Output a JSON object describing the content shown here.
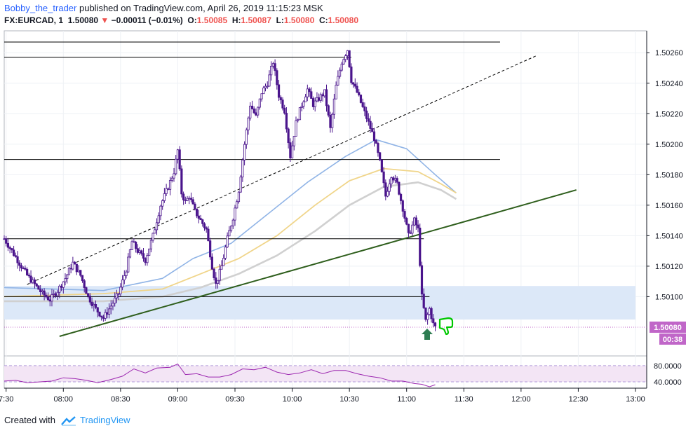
{
  "header": {
    "author": "Bobby_the_trader",
    "published_text": "published on TradingView.com, April 26, 2019 11:15:23 MSK",
    "symbol": "FX:EURCAD, 1",
    "last_price": "1.50080",
    "change": "−0.00011 (−0.01%)",
    "o_label": "O:",
    "o_value": "1.50085",
    "h_label": "H:",
    "h_value": "1.50087",
    "l_label": "L:",
    "l_value": "1.50080",
    "c_label": "C:",
    "c_value": "1.50080"
  },
  "footer": {
    "created_with": "Created with",
    "brand": "TradingView"
  },
  "colors": {
    "candle": "#4a148c",
    "trendline": "#2e5e1c",
    "dashed_channel": "#000000",
    "ma_fast": "#90b4e6",
    "ma_mid": "#f0d58a",
    "ma_slow": "#d0d0d0",
    "zone_fill": "#dce8f8",
    "rsi_line": "#9c27b0",
    "rsi_fill": "#f3e5f5",
    "price_tag": "#c066c8",
    "arrow_up": "#2e7d52",
    "thumbs_down": "#00c800"
  },
  "icons": [
    "arrow-up-icon",
    "thumbs-down-icon",
    "tradingview-logo-icon"
  ],
  "chart_data": {
    "type": "candlestick",
    "symbol": "FX:EURCAD",
    "interval": "1",
    "price_axis": {
      "ticks": [
        1.5026,
        1.5024,
        1.5022,
        1.502,
        1.5018,
        1.5016,
        1.5014,
        1.5012,
        1.501
      ],
      "tick_labels": [
        "1.50260",
        "1.50240",
        "1.50220",
        "1.50200",
        "1.50180",
        "1.50160",
        "1.50140",
        "1.50120",
        "1.50100"
      ],
      "last_price_label": "1.50080",
      "countdown_label": "00:38",
      "range": [
        1.50074,
        1.50267
      ]
    },
    "time_axis": {
      "ticks": [
        "07:30",
        "08:00",
        "08:30",
        "09:00",
        "09:30",
        "10:00",
        "10:30",
        "11:00",
        "11:30",
        "12:00",
        "12:30",
        "13:00"
      ],
      "tick_labels": [
        "7:30",
        "08:00",
        "08:30",
        "09:00",
        "09:30",
        "10:00",
        "10:30",
        "11:00",
        "11:30",
        "12:00",
        "12:30",
        "13:00"
      ],
      "range": [
        "07:29",
        "13:00"
      ]
    },
    "close_path": [
      [
        "07:29",
        1.50138
      ],
      [
        "07:33",
        1.5013
      ],
      [
        "07:37",
        1.50122
      ],
      [
        "07:41",
        1.50114
      ],
      [
        "07:45",
        1.50108
      ],
      [
        "07:49",
        1.50102
      ],
      [
        "07:53",
        1.50098
      ],
      [
        "07:57",
        1.50104
      ],
      [
        "08:01",
        1.50112
      ],
      [
        "08:05",
        1.50122
      ],
      [
        "08:09",
        1.50114
      ],
      [
        "08:13",
        1.501
      ],
      [
        "08:17",
        1.50092
      ],
      [
        "08:21",
        1.50086
      ],
      [
        "08:25",
        1.50094
      ],
      [
        "08:29",
        1.50102
      ],
      [
        "08:33",
        1.50118
      ],
      [
        "08:36",
        1.50136
      ],
      [
        "08:39",
        1.5013
      ],
      [
        "08:43",
        1.50124
      ],
      [
        "08:47",
        1.5014
      ],
      [
        "08:51",
        1.5016
      ],
      [
        "08:55",
        1.50172
      ],
      [
        "08:58",
        1.50182
      ],
      [
        "09:00",
        1.50196
      ],
      [
        "09:02",
        1.50168
      ],
      [
        "09:04",
        1.50162
      ],
      [
        "09:06",
        1.50166
      ],
      [
        "09:09",
        1.50156
      ],
      [
        "09:12",
        1.5015
      ],
      [
        "09:15",
        1.50144
      ],
      [
        "09:18",
        1.5012
      ],
      [
        "09:20",
        1.50108
      ],
      [
        "09:23",
        1.5012
      ],
      [
        "09:26",
        1.50138
      ],
      [
        "09:29",
        1.50152
      ],
      [
        "09:32",
        1.5017
      ],
      [
        "09:35",
        1.502
      ],
      [
        "09:38",
        1.50226
      ],
      [
        "09:41",
        1.50218
      ],
      [
        "09:44",
        1.50234
      ],
      [
        "09:47",
        1.5024
      ],
      [
        "09:50",
        1.50254
      ],
      [
        "09:53",
        1.50232
      ],
      [
        "09:56",
        1.50222
      ],
      [
        "09:59",
        1.50192
      ],
      [
        "10:02",
        1.50214
      ],
      [
        "10:05",
        1.50226
      ],
      [
        "10:08",
        1.50236
      ],
      [
        "10:11",
        1.50226
      ],
      [
        "10:14",
        1.5023
      ],
      [
        "10:17",
        1.50234
      ],
      [
        "10:20",
        1.5021
      ],
      [
        "10:23",
        1.50238
      ],
      [
        "10:26",
        1.50254
      ],
      [
        "10:29",
        1.50262
      ],
      [
        "10:31",
        1.50242
      ],
      [
        "10:34",
        1.50234
      ],
      [
        "10:37",
        1.50224
      ],
      [
        "10:40",
        1.50214
      ],
      [
        "10:43",
        1.50204
      ],
      [
        "10:46",
        1.50188
      ],
      [
        "10:49",
        1.50166
      ],
      [
        "10:52",
        1.5018
      ],
      [
        "10:55",
        1.50174
      ],
      [
        "10:58",
        1.50158
      ],
      [
        "11:01",
        1.5014
      ],
      [
        "11:04",
        1.5015
      ],
      [
        "11:06",
        1.50144
      ],
      [
        "11:08",
        1.501
      ],
      [
        "11:10",
        1.50084
      ],
      [
        "11:12",
        1.50092
      ],
      [
        "11:14",
        1.50082
      ],
      [
        "11:15",
        1.5008
      ]
    ],
    "levels": [
      {
        "price": 1.50267,
        "from": "07:29",
        "to": "11:49",
        "style": "solid"
      },
      {
        "price": 1.50257,
        "from": "07:29",
        "to": "10:31",
        "style": "solid"
      },
      {
        "price": 1.5019,
        "from": "07:29",
        "to": "11:49",
        "style": "solid"
      },
      {
        "price": 1.50138,
        "from": "07:29",
        "to": "11:09",
        "style": "solid"
      },
      {
        "price": 1.501,
        "from": "07:29",
        "to": "11:12",
        "style": "solid"
      }
    ],
    "zone": {
      "from": "07:29",
      "to": "13:00",
      "top": 1.50107,
      "bottom": 1.50085
    },
    "trendline": [
      [
        "07:58",
        1.50074
      ],
      [
        "12:29",
        1.5017
      ]
    ],
    "channel_line": [
      [
        "07:41",
        1.50108
      ],
      [
        "12:08",
        1.50258
      ]
    ],
    "moving_averages": [
      {
        "style": "fast",
        "points": [
          [
            "07:29",
            1.50106
          ],
          [
            "08:21",
            1.50104
          ],
          [
            "08:52",
            1.50112
          ],
          [
            "09:08",
            1.50125
          ],
          [
            "09:28",
            1.50135
          ],
          [
            "09:45",
            1.50152
          ],
          [
            "10:08",
            1.50175
          ],
          [
            "10:28",
            1.50192
          ],
          [
            "10:44",
            1.50203
          ],
          [
            "11:00",
            1.50197
          ],
          [
            "11:15",
            1.5018
          ],
          [
            "11:26",
            1.50168
          ]
        ]
      },
      {
        "style": "mid",
        "points": [
          [
            "07:29",
            1.501
          ],
          [
            "08:21",
            1.50102
          ],
          [
            "08:52",
            1.50105
          ],
          [
            "09:12",
            1.50115
          ],
          [
            "09:32",
            1.50125
          ],
          [
            "09:52",
            1.5014
          ],
          [
            "10:12",
            1.5016
          ],
          [
            "10:30",
            1.50176
          ],
          [
            "10:48",
            1.50184
          ],
          [
            "11:06",
            1.50182
          ],
          [
            "11:18",
            1.50174
          ],
          [
            "11:26",
            1.50168
          ]
        ]
      },
      {
        "style": "slow",
        "points": [
          [
            "07:29",
            1.50097
          ],
          [
            "08:21",
            1.50097
          ],
          [
            "08:52",
            1.501
          ],
          [
            "09:12",
            1.50106
          ],
          [
            "09:32",
            1.50115
          ],
          [
            "09:52",
            1.50127
          ],
          [
            "10:12",
            1.50143
          ],
          [
            "10:30",
            1.5016
          ],
          [
            "10:48",
            1.50172
          ],
          [
            "11:06",
            1.50175
          ],
          [
            "11:18",
            1.5017
          ],
          [
            "11:26",
            1.50164
          ]
        ]
      }
    ],
    "rsi": {
      "tick_labels": [
        "80.0000",
        "40.0000"
      ],
      "ticks": [
        80,
        40
      ],
      "range": [
        28,
        97
      ],
      "points": [
        [
          "07:29",
          44
        ],
        [
          "07:35",
          42
        ],
        [
          "07:41",
          40
        ],
        [
          "07:48",
          38
        ],
        [
          "07:54",
          44
        ],
        [
          "08:00",
          48
        ],
        [
          "08:06",
          50
        ],
        [
          "08:12",
          42
        ],
        [
          "08:18",
          40
        ],
        [
          "08:25",
          44
        ],
        [
          "08:31",
          56
        ],
        [
          "08:37",
          70
        ],
        [
          "08:43",
          64
        ],
        [
          "08:49",
          72
        ],
        [
          "08:56",
          78
        ],
        [
          "09:00",
          82
        ],
        [
          "09:04",
          60
        ],
        [
          "09:10",
          58
        ],
        [
          "09:16",
          54
        ],
        [
          "09:22",
          50
        ],
        [
          "09:28",
          60
        ],
        [
          "09:34",
          70
        ],
        [
          "09:40",
          72
        ],
        [
          "09:46",
          74
        ],
        [
          "09:52",
          66
        ],
        [
          "09:58",
          56
        ],
        [
          "10:04",
          64
        ],
        [
          "10:10",
          68
        ],
        [
          "10:16",
          62
        ],
        [
          "10:22",
          66
        ],
        [
          "10:28",
          70
        ],
        [
          "10:34",
          58
        ],
        [
          "10:40",
          56
        ],
        [
          "10:46",
          48
        ],
        [
          "10:52",
          44
        ],
        [
          "10:58",
          40
        ],
        [
          "11:04",
          38
        ],
        [
          "11:08",
          32
        ],
        [
          "11:12",
          30
        ],
        [
          "11:15",
          31
        ]
      ]
    }
  }
}
